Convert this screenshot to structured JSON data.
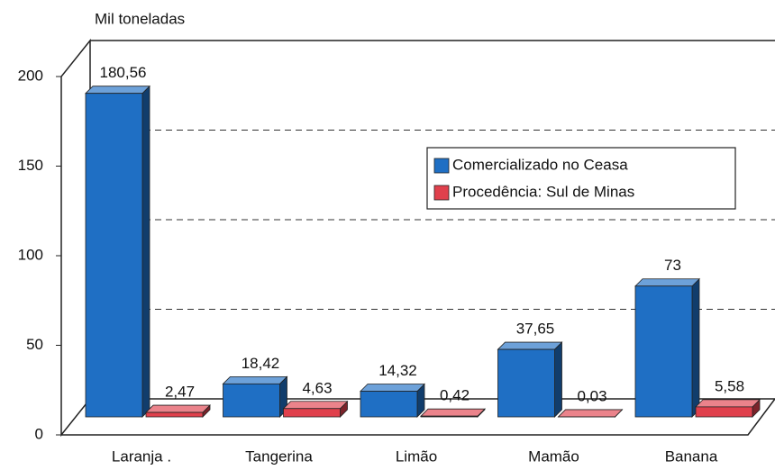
{
  "chart_data": {
    "type": "bar",
    "y_axis_label": "Mil toneladas",
    "categories": [
      "Laranja .",
      "Tangerina",
      "Limão",
      "Mamão",
      "Banana"
    ],
    "series": [
      {
        "name": "Comercializado no Ceasa",
        "color": "#1f6fc4",
        "values": [
          180.56,
          18.42,
          14.32,
          37.65,
          73
        ],
        "value_labels": [
          "180,56",
          "18,42",
          "14,32",
          "37,65",
          "73"
        ]
      },
      {
        "name": "Procedência: Sul de Minas",
        "color": "#e0404c",
        "values": [
          2.47,
          4.63,
          0.42,
          0.03,
          5.58
        ],
        "value_labels": [
          "2,47",
          "4,63",
          "0,42",
          "0,03",
          "5,58"
        ]
      }
    ],
    "ylim": [
      0,
      200
    ],
    "yticks": [
      0,
      50,
      100,
      150,
      200
    ],
    "grid": true,
    "legend": "upper right"
  }
}
